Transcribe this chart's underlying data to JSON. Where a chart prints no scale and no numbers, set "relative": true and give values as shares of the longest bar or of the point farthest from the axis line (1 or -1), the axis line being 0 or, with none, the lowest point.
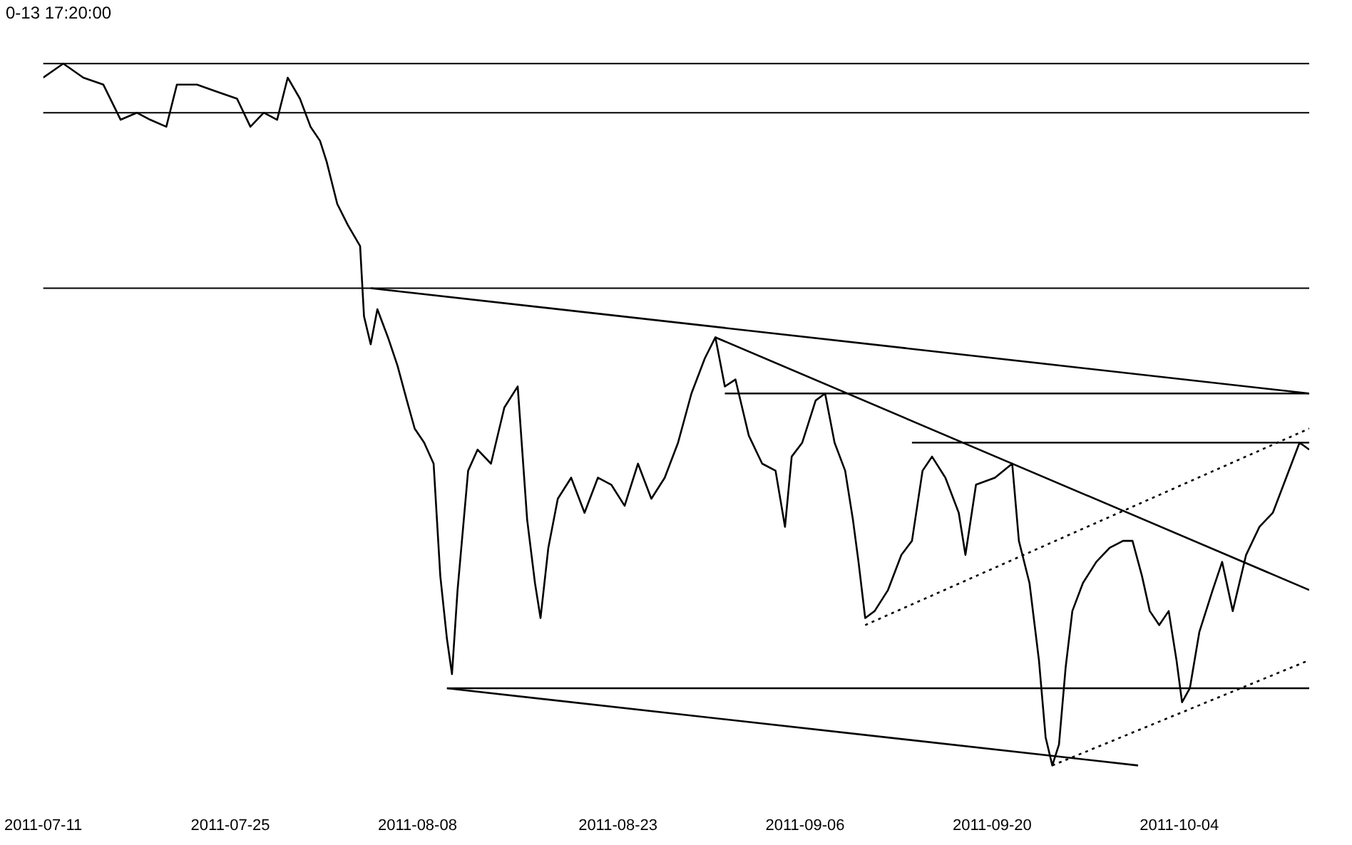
{
  "chart_data": {
    "type": "line",
    "title": "0-13 17:20:00",
    "relative": true,
    "marker": "none",
    "legend": false,
    "line_style": "solid",
    "xlim": [
      "2011-07-11",
      "2011-10-13T17:20"
    ],
    "xticks": [
      "2011-07-11",
      "2011-07-25",
      "2011-08-08",
      "2011-08-23",
      "2011-09-06",
      "2011-09-20",
      "2011-10-04"
    ],
    "ref_lines": [
      {
        "axis": "y",
        "value": 1,
        "color": "#000000"
      },
      {
        "axis": "y",
        "value": 0.93,
        "color": "#000000"
      },
      {
        "axis": "y",
        "value": 0.68,
        "color": "#000000"
      }
    ],
    "series": [
      {
        "color": "#000000",
        "x": [
          "2011-07-11T00:00",
          "2011-07-12T12:00",
          "2011-07-14T00:00",
          "2011-07-15T12:00",
          "2011-07-16T19:00",
          "2011-07-18T00:00",
          "2011-07-19T00:00",
          "2011-07-20T05:00",
          "2011-07-21T00:00",
          "2011-07-22T12:00",
          "2011-07-24T00:00",
          "2011-07-25T12:00",
          "2011-07-26T12:00",
          "2011-07-27T12:00",
          "2011-07-28T12:00",
          "2011-07-29T07:00",
          "2011-07-30T05:00",
          "2011-07-31T00:00",
          "2011-07-31T17:00",
          "2011-08-01T05:00",
          "2011-08-02T00:00",
          "2011-08-02T19:00",
          "2011-08-03T17:00",
          "2011-08-04T00:00",
          "2011-08-04T12:00",
          "2011-08-05T00:00",
          "2011-08-05T19:00",
          "2011-08-06T12:00",
          "2011-08-07T05:00",
          "2011-08-07T19:00",
          "2011-08-08T12:00",
          "2011-08-09T05:00",
          "2011-08-09T17:00",
          "2011-08-10T05:00",
          "2011-08-10T14:00",
          "2011-08-11T00:00",
          "2011-08-11T19:00",
          "2011-08-12T12:00",
          "2011-08-13T12:00",
          "2011-08-14T12:00",
          "2011-08-15T12:00",
          "2011-08-16T05:00",
          "2011-08-16T19:00",
          "2011-08-17T05:00",
          "2011-08-17T19:00",
          "2011-08-18T12:00",
          "2011-08-19T12:00",
          "2011-08-20T12:00",
          "2011-08-21T12:00",
          "2011-08-22T12:00",
          "2011-08-23T12:00",
          "2011-08-24T12:00",
          "2011-08-25T12:00",
          "2011-08-26T12:00",
          "2011-08-27T12:00",
          "2011-08-28T12:00",
          "2011-08-29T12:00",
          "2011-08-30T07:00",
          "2011-08-31T00:00",
          "2011-08-31T19:00",
          "2011-09-01T19:00",
          "2011-09-02T19:00",
          "2011-09-03T19:00",
          "2011-09-04T12:00",
          "2011-09-05T00:00",
          "2011-09-05T19:00",
          "2011-09-06T19:00",
          "2011-09-07T12:00",
          "2011-09-08T05:00",
          "2011-09-09T00:00",
          "2011-09-09T14:00",
          "2011-09-10T00:00",
          "2011-09-10T12:00",
          "2011-09-11T05:00",
          "2011-09-12T05:00",
          "2011-09-13T05:00",
          "2011-09-14T00:00",
          "2011-09-14T19:00",
          "2011-09-15T12:00",
          "2011-09-16T12:00",
          "2011-09-17T12:00",
          "2011-09-18T00:00",
          "2011-09-18T19:00",
          "2011-09-20T05:00",
          "2011-09-21T12:00",
          "2011-09-22T00:00",
          "2011-09-22T19:00",
          "2011-09-23T12:00",
          "2011-09-24T00:00",
          "2011-09-24T12:00",
          "2011-09-25T00:00",
          "2011-09-25T12:00",
          "2011-09-26T00:00",
          "2011-09-26T19:00",
          "2011-09-27T19:00",
          "2011-09-28T19:00",
          "2011-09-29T19:00",
          "2011-09-30T12:00",
          "2011-10-01T05:00",
          "2011-10-01T19:00",
          "2011-10-02T12:00",
          "2011-10-03T05:00",
          "2011-10-03T19:00",
          "2011-10-04T05:00",
          "2011-10-04T19:00",
          "2011-10-05T12:00",
          "2011-10-06T12:00",
          "2011-10-07T05:00",
          "2011-10-08T00:00",
          "2011-10-09T00:00",
          "2011-10-10T00:00",
          "2011-10-11T00:00",
          "2011-10-12T00:00",
          "2011-10-13T00:00",
          "2011-10-13T17:20"
        ],
        "values": [
          0.98,
          1,
          0.98,
          0.97,
          0.92,
          0.93,
          0.92,
          0.91,
          0.97,
          0.97,
          0.96,
          0.95,
          0.91,
          0.93,
          0.92,
          0.98,
          0.95,
          0.91,
          0.89,
          0.86,
          0.8,
          0.77,
          0.74,
          0.64,
          0.6,
          0.65,
          0.61,
          0.57,
          0.52,
          0.48,
          0.46,
          0.43,
          0.27,
          0.18,
          0.13,
          0.25,
          0.42,
          0.45,
          0.43,
          0.51,
          0.54,
          0.35,
          0.26,
          0.21,
          0.31,
          0.38,
          0.41,
          0.36,
          0.41,
          0.4,
          0.37,
          0.43,
          0.38,
          0.41,
          0.46,
          0.53,
          0.58,
          0.61,
          0.54,
          0.55,
          0.47,
          0.43,
          0.42,
          0.34,
          0.44,
          0.46,
          0.52,
          0.53,
          0.46,
          0.42,
          0.35,
          0.29,
          0.21,
          0.22,
          0.25,
          0.3,
          0.32,
          0.42,
          0.44,
          0.41,
          0.36,
          0.3,
          0.4,
          0.41,
          0.43,
          0.32,
          0.26,
          0.15,
          0.04,
          0,
          0.03,
          0.14,
          0.22,
          0.26,
          0.29,
          0.31,
          0.32,
          0.32,
          0.27,
          0.22,
          0.2,
          0.22,
          0.15,
          0.09,
          0.11,
          0.19,
          0.25,
          0.29,
          0.22,
          0.3,
          0.34,
          0.36,
          0.41,
          0.46,
          0.45
        ]
      },
      {
        "color": "#000000",
        "x": [
          "2011-08-04T12:00",
          "2011-10-13T17:20"
        ],
        "values": [
          0.68,
          0.53
        ]
      },
      {
        "color": "#000000",
        "x": [
          "2011-08-10T05:00",
          "2011-09-30T22:00"
        ],
        "values": [
          0.11,
          0
        ]
      },
      {
        "color": "#000000",
        "x": [
          "2011-08-30T07:00",
          "2011-10-13T17:20"
        ],
        "values": [
          0.61,
          0.25
        ]
      },
      {
        "color": "#000000",
        "x": [
          "2011-08-31T00:00",
          "2011-10-13T17:20"
        ],
        "values": [
          0.53,
          0.53
        ]
      },
      {
        "color": "#000000",
        "x": [
          "2011-09-14T00:00",
          "2011-10-13T17:20"
        ],
        "values": [
          0.46,
          0.46
        ]
      },
      {
        "color": "#000000",
        "x": [
          "2011-08-10T05:00",
          "2011-10-13T17:20"
        ],
        "values": [
          0.11,
          0.11
        ]
      },
      {
        "color": "#000000",
        "line_style": "dotted",
        "x": [
          "2011-09-10T12:00",
          "2011-10-13T17:20"
        ],
        "values": [
          0.2,
          0.48
        ]
      },
      {
        "color": "#000000",
        "line_style": "dotted",
        "x": [
          "2011-09-24T12:00",
          "2011-10-13T17:20"
        ],
        "values": [
          0,
          0.15
        ]
      }
    ]
  }
}
